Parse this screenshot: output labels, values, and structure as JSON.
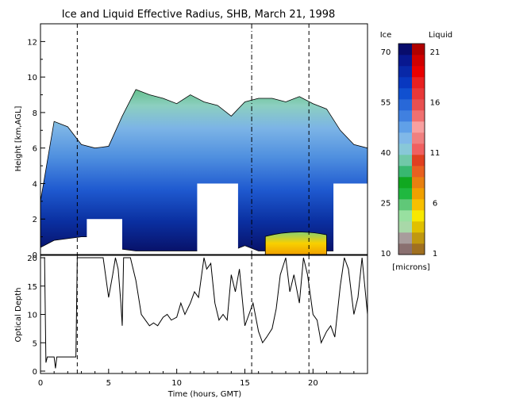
{
  "chart_data": [
    {
      "type": "heatmap",
      "title": "Ice and Liquid Effective Radius, SHB, March 21, 1998",
      "ylabel": "Height [km,AGL]",
      "xlim": [
        0,
        24
      ],
      "ylim": [
        0,
        13
      ],
      "yticks": [
        "0",
        "2",
        "4",
        "6",
        "8",
        "10",
        "12"
      ],
      "colorbar": {
        "ice_label": "Ice",
        "liquid_label": "Liquid",
        "units": "[microns]",
        "ice_ticks": [
          "70",
          "55",
          "40",
          "25",
          "10"
        ],
        "liquid_ticks": [
          "21",
          "16",
          "11",
          "6",
          "1"
        ],
        "ice_range": [
          10,
          70
        ],
        "liquid_range": [
          1,
          21
        ]
      },
      "cloud_base_km_by_hour": [
        [
          0,
          0.4
        ],
        [
          1,
          0.8
        ],
        [
          2,
          0.9
        ],
        [
          3,
          1.0
        ],
        [
          4,
          1.0
        ],
        [
          5,
          1.0
        ],
        [
          6,
          0.3
        ],
        [
          7,
          0.2
        ],
        [
          8,
          0.2
        ],
        [
          9,
          0.2
        ],
        [
          10,
          0.2
        ],
        [
          11,
          0.2
        ],
        [
          14,
          0.2
        ],
        [
          15,
          0.5
        ],
        [
          16,
          0.2
        ],
        [
          17,
          0.2
        ],
        [
          18,
          0.2
        ],
        [
          19,
          0.2
        ],
        [
          20,
          0.2
        ],
        [
          21,
          0.2
        ],
        [
          24,
          0.2
        ]
      ],
      "cloud_top_km_by_hour": [
        [
          0,
          3.0
        ],
        [
          1,
          7.5
        ],
        [
          2,
          7.2
        ],
        [
          3,
          6.2
        ],
        [
          4,
          6.0
        ],
        [
          5,
          6.1
        ],
        [
          6,
          7.8
        ],
        [
          7,
          9.3
        ],
        [
          8,
          9.0
        ],
        [
          9,
          8.8
        ],
        [
          10,
          8.5
        ],
        [
          11,
          9.0
        ],
        [
          12,
          8.6
        ],
        [
          13,
          8.4
        ],
        [
          14,
          7.8
        ],
        [
          15,
          8.6
        ],
        [
          16,
          8.8
        ],
        [
          17,
          8.8
        ],
        [
          18,
          8.6
        ],
        [
          19,
          8.9
        ],
        [
          20,
          8.5
        ],
        [
          21,
          8.2
        ],
        [
          22,
          7.0
        ],
        [
          23,
          6.2
        ],
        [
          24,
          6.0
        ]
      ],
      "data_gaps": [
        {
          "x": [
            3.4,
            6.0
          ],
          "y": [
            0,
            2.0
          ]
        },
        {
          "x": [
            11.5,
            14.5
          ],
          "y": [
            0,
            4.0
          ]
        },
        {
          "x": [
            21.5,
            24.0
          ],
          "y": [
            0,
            4.0
          ]
        }
      ],
      "liquid_layer": {
        "x": [
          16.5,
          21.0
        ],
        "y": [
          0,
          1.2
        ]
      },
      "event_lines_hours": [
        2.7,
        15.5,
        19.7
      ]
    },
    {
      "type": "line",
      "xlabel": "Time (hours, GMT)",
      "ylabel": "Optical Depth",
      "xlim": [
        0,
        24
      ],
      "ylim": [
        0,
        20
      ],
      "xticks": [
        "0",
        "5",
        "10",
        "15",
        "20"
      ],
      "yticks": [
        "0",
        "5",
        "10",
        "15",
        "20"
      ],
      "series": [
        {
          "x": [
            0,
            0.3,
            0.4,
            0.5,
            1.0,
            1.1,
            1.2,
            2.6,
            2.7,
            2.8,
            3.0,
            3.3,
            3.8,
            4.2,
            4.6,
            5.0,
            5.3,
            5.5,
            5.7,
            5.9,
            6.0,
            6.1,
            6.3,
            6.6,
            7.0,
            7.4,
            7.7,
            8.0,
            8.3,
            8.6,
            9.0,
            9.3,
            9.6,
            10.0,
            10.3,
            10.6,
            11.0,
            11.3,
            11.6,
            12.0,
            12.2,
            12.5,
            12.8,
            13.1,
            13.4,
            13.7,
            14.0,
            14.3,
            14.6,
            15.0,
            15.3,
            15.6,
            16.0,
            16.3,
            16.6,
            17.0,
            17.3,
            17.6,
            18.0,
            18.3,
            18.6,
            19.0,
            19.3,
            19.6,
            20.0,
            20.3,
            20.6,
            21.0,
            21.3,
            21.6,
            22.0,
            22.3,
            22.6,
            23.0,
            23.3,
            23.6,
            24.0
          ],
          "y": [
            20,
            20,
            1.5,
            2.5,
            2.5,
            0.5,
            2.5,
            2.5,
            20,
            20,
            20,
            20,
            20,
            20,
            20,
            13,
            17,
            20,
            18,
            12,
            8,
            20,
            20,
            20,
            16,
            10,
            9,
            8,
            8.5,
            8,
            9.5,
            10,
            9,
            9.5,
            12,
            10,
            12,
            14,
            13,
            20,
            18,
            19,
            12,
            9,
            10,
            9,
            17,
            14,
            18,
            8,
            10,
            12,
            7,
            5,
            6,
            7.5,
            11,
            17,
            20,
            14,
            17,
            12,
            20,
            17,
            10,
            9,
            5,
            7,
            8,
            6,
            15,
            20,
            18,
            10,
            13,
            20,
            10
          ]
        }
      ]
    }
  ]
}
